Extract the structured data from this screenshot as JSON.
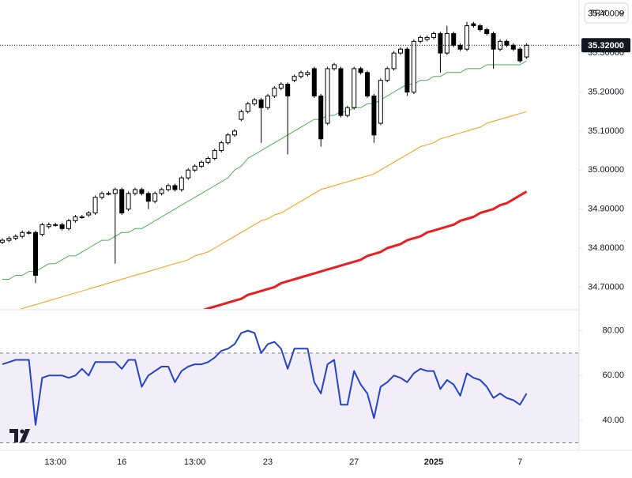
{
  "currency": "TRY",
  "chart_data": [
    {
      "type": "candlestick",
      "categories": [
        null,
        null,
        null,
        null,
        null,
        null,
        null,
        null,
        "13:00",
        null,
        null,
        null,
        null,
        null,
        null,
        null,
        null,
        null,
        "16",
        null,
        null,
        null,
        null,
        null,
        null,
        null,
        null,
        null,
        null,
        "13:00",
        null,
        null,
        null,
        null,
        null,
        null,
        null,
        null,
        null,
        null,
        "23",
        null,
        null,
        null,
        null,
        null,
        null,
        null,
        null,
        null,
        null,
        null,
        null,
        "27",
        null,
        null,
        null,
        null,
        null,
        null,
        null,
        null,
        null,
        null,
        null,
        "2025",
        null,
        null,
        null,
        null,
        null,
        null,
        null,
        null,
        null,
        null,
        null,
        null,
        "7",
        null
      ],
      "open": [
        34.815,
        34.82,
        34.825,
        34.83,
        34.84,
        34.84,
        34.835,
        34.855,
        34.86,
        34.86,
        34.85,
        34.87,
        34.88,
        34.885,
        34.89,
        34.93,
        34.94,
        34.94,
        34.95,
        34.9,
        34.94,
        34.95,
        34.94,
        34.92,
        34.94,
        34.95,
        34.96,
        34.95,
        34.98,
        35.0,
        35.01,
        35.02,
        35.03,
        35.05,
        35.07,
        35.09,
        35.13,
        35.15,
        35.17,
        35.18,
        35.16,
        35.19,
        35.21,
        35.22,
        35.23,
        35.24,
        35.245,
        35.26,
        35.19,
        35.12,
        35.26,
        35.26,
        35.14,
        35.16,
        35.26,
        35.25,
        35.19,
        35.12,
        35.23,
        35.26,
        35.3,
        35.31,
        35.2,
        35.33,
        35.335,
        35.34,
        35.35,
        35.3,
        35.35,
        35.32,
        35.31,
        35.375,
        35.37,
        35.36,
        35.35,
        35.31,
        35.33,
        35.32,
        35.31,
        35.29
      ],
      "high": [
        34.825,
        34.83,
        34.835,
        34.845,
        34.845,
        34.845,
        34.865,
        34.865,
        34.865,
        34.865,
        34.875,
        34.885,
        34.885,
        34.895,
        34.935,
        34.945,
        34.945,
        34.955,
        34.955,
        34.945,
        34.955,
        34.955,
        34.945,
        34.945,
        34.955,
        34.965,
        34.965,
        34.985,
        35.005,
        35.015,
        35.025,
        35.035,
        35.055,
        35.075,
        35.095,
        35.105,
        35.155,
        35.175,
        35.185,
        35.185,
        35.195,
        35.215,
        35.225,
        35.225,
        35.245,
        35.255,
        35.255,
        35.265,
        35.195,
        35.265,
        35.275,
        35.265,
        35.165,
        35.265,
        35.265,
        35.255,
        35.195,
        35.235,
        35.265,
        35.305,
        35.315,
        35.315,
        35.335,
        35.345,
        35.345,
        35.355,
        35.355,
        35.37,
        35.355,
        35.325,
        35.38,
        35.38,
        35.375,
        35.365,
        35.355,
        35.335,
        35.335,
        35.325,
        35.315,
        35.325
      ],
      "low": [
        34.81,
        34.815,
        34.82,
        34.825,
        34.835,
        34.71,
        34.83,
        34.85,
        34.855,
        34.845,
        34.845,
        34.865,
        34.875,
        34.88,
        34.885,
        34.925,
        34.935,
        34.76,
        34.885,
        34.895,
        34.935,
        34.935,
        34.9,
        34.915,
        34.935,
        34.945,
        34.945,
        34.945,
        34.975,
        34.995,
        35.005,
        35.015,
        35.025,
        35.045,
        35.065,
        35.085,
        35.125,
        35.145,
        35.165,
        35.07,
        35.155,
        35.185,
        35.205,
        35.04,
        35.225,
        35.235,
        35.24,
        35.185,
        35.06,
        35.115,
        35.255,
        35.135,
        35.135,
        35.155,
        35.245,
        35.185,
        35.07,
        35.115,
        35.225,
        35.255,
        35.295,
        35.19,
        35.195,
        35.325,
        35.33,
        35.335,
        35.25,
        35.295,
        35.315,
        35.305,
        35.305,
        35.365,
        35.355,
        35.345,
        35.26,
        35.305,
        35.315,
        35.305,
        35.275,
        35.285
      ],
      "close": [
        34.82,
        34.825,
        34.83,
        34.84,
        34.84,
        34.73,
        34.86,
        34.86,
        34.86,
        34.85,
        34.87,
        34.88,
        34.88,
        34.89,
        34.93,
        34.94,
        34.94,
        34.95,
        34.89,
        34.94,
        34.95,
        34.94,
        34.92,
        34.94,
        34.95,
        34.96,
        34.95,
        34.98,
        35.0,
        35.01,
        35.02,
        35.03,
        35.05,
        35.07,
        35.09,
        35.1,
        35.15,
        35.17,
        35.18,
        35.16,
        35.19,
        35.21,
        35.22,
        35.19,
        35.24,
        35.25,
        35.25,
        35.19,
        35.08,
        35.26,
        35.27,
        35.14,
        35.16,
        35.26,
        35.25,
        35.19,
        35.09,
        35.23,
        35.26,
        35.3,
        35.31,
        35.2,
        35.33,
        35.34,
        35.34,
        35.35,
        35.3,
        35.35,
        35.32,
        35.31,
        35.37,
        35.37,
        35.36,
        35.35,
        35.31,
        35.33,
        35.32,
        35.31,
        35.28,
        35.32
      ],
      "up_color": "#ffffff",
      "down_color": "#000000",
      "series": [
        {
          "color": "#4caf50",
          "width": 1,
          "values": [
            34.72,
            34.72,
            34.73,
            34.73,
            34.74,
            34.74,
            34.75,
            34.76,
            34.76,
            34.77,
            34.78,
            34.78,
            34.79,
            34.8,
            34.81,
            34.82,
            34.82,
            34.83,
            34.84,
            34.84,
            34.85,
            34.85,
            34.86,
            34.87,
            34.88,
            34.89,
            34.9,
            34.91,
            34.92,
            34.93,
            34.94,
            34.95,
            34.96,
            34.97,
            34.98,
            35.0,
            35.01,
            35.03,
            35.04,
            35.05,
            35.06,
            35.07,
            35.08,
            35.09,
            35.1,
            35.11,
            35.12,
            35.13,
            35.13,
            35.14,
            35.14,
            35.15,
            35.15,
            35.16,
            35.16,
            35.17,
            35.17,
            35.18,
            35.19,
            35.2,
            35.21,
            35.22,
            35.22,
            35.23,
            35.23,
            35.24,
            35.24,
            35.25,
            35.25,
            35.25,
            35.26,
            35.26,
            35.26,
            35.27,
            35.27,
            35.27,
            35.27,
            35.27,
            35.27,
            35.28
          ]
        },
        {
          "color": "#ff9800",
          "width": 1,
          "values": [
            null,
            null,
            34.64,
            34.645,
            34.65,
            34.655,
            34.66,
            34.665,
            34.67,
            34.675,
            34.68,
            34.685,
            34.69,
            34.695,
            34.7,
            34.705,
            34.71,
            34.715,
            34.72,
            34.725,
            34.73,
            34.735,
            34.74,
            34.745,
            34.75,
            34.755,
            34.76,
            34.765,
            34.77,
            34.78,
            34.785,
            34.79,
            34.8,
            34.81,
            34.82,
            34.83,
            34.84,
            34.85,
            34.86,
            34.87,
            34.875,
            34.885,
            34.89,
            34.9,
            34.91,
            34.92,
            34.93,
            34.94,
            34.95,
            34.955,
            34.96,
            34.965,
            34.97,
            34.975,
            34.98,
            34.985,
            34.99,
            35.0,
            35.01,
            35.02,
            35.03,
            35.04,
            35.05,
            35.06,
            35.065,
            35.07,
            35.08,
            35.085,
            35.09,
            35.095,
            35.1,
            35.105,
            35.11,
            35.12,
            35.125,
            35.13,
            35.135,
            35.14,
            35.145,
            35.15
          ]
        },
        {
          "color": "#e81f1f",
          "width": 3,
          "values": [
            null,
            null,
            null,
            null,
            null,
            null,
            null,
            null,
            null,
            null,
            null,
            null,
            null,
            null,
            null,
            null,
            null,
            null,
            null,
            null,
            null,
            null,
            null,
            null,
            null,
            null,
            null,
            null,
            null,
            null,
            34.64,
            34.645,
            34.65,
            34.655,
            34.66,
            34.665,
            34.67,
            34.68,
            34.685,
            34.69,
            34.695,
            34.7,
            34.71,
            34.715,
            34.72,
            34.725,
            34.73,
            34.735,
            34.74,
            34.745,
            34.75,
            34.755,
            34.76,
            34.765,
            34.77,
            34.78,
            34.785,
            34.79,
            34.8,
            34.805,
            34.81,
            34.82,
            34.825,
            34.83,
            34.84,
            34.845,
            34.85,
            34.855,
            34.86,
            34.87,
            34.875,
            34.88,
            34.89,
            34.895,
            34.9,
            34.91,
            34.915,
            34.925,
            34.935,
            34.945
          ]
        }
      ],
      "ylim": [
        34.644,
        35.436
      ],
      "yticks": [
        {
          "value": 34.7,
          "label": "34.70000"
        },
        {
          "value": 34.8,
          "label": "34.80000"
        },
        {
          "value": 34.9,
          "label": "34.90000"
        },
        {
          "value": 35.0,
          "label": "35.00000"
        },
        {
          "value": 35.1,
          "label": "35.10000"
        },
        {
          "value": 35.2,
          "label": "35.20000"
        },
        {
          "value": 35.3,
          "label": "35.30000"
        },
        {
          "value": 35.4,
          "label": "35.40000"
        }
      ],
      "last": {
        "value": 35.32,
        "label": "35.32000"
      }
    },
    {
      "type": "line",
      "color": "#2443c8",
      "values": [
        65,
        66,
        67,
        67,
        67,
        38,
        59,
        60,
        60,
        60,
        59,
        60,
        63,
        60,
        66,
        66,
        66,
        66,
        63,
        67,
        67,
        55,
        60,
        62,
        64,
        64,
        57,
        62,
        64,
        65,
        65,
        66,
        68,
        71,
        72,
        74,
        79,
        80,
        79,
        70,
        74,
        75,
        72,
        63,
        72,
        72,
        72,
        57,
        52,
        65,
        67,
        47,
        47,
        62,
        56,
        52,
        41,
        55,
        57,
        60,
        59,
        57,
        61,
        63,
        62,
        62,
        54,
        58,
        56,
        51,
        61,
        59,
        58,
        55,
        50,
        52,
        50,
        49,
        47,
        52
      ],
      "ylim": [
        27,
        89
      ],
      "yticks": [
        {
          "value": 40,
          "label": "40.00"
        },
        {
          "value": 60,
          "label": "60.00"
        },
        {
          "value": 80,
          "label": "80.00"
        }
      ],
      "bands": [
        30,
        70
      ],
      "band_color": "#7e57c2"
    }
  ]
}
